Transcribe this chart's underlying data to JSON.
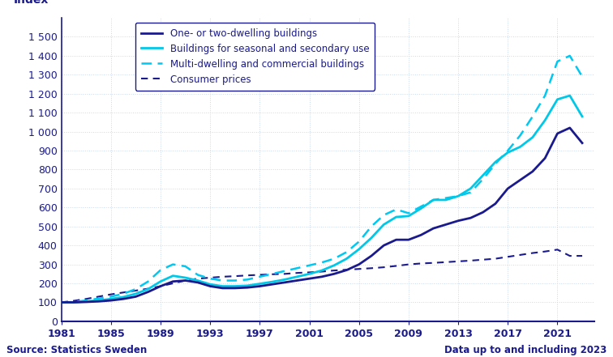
{
  "years": [
    1981,
    1982,
    1983,
    1984,
    1985,
    1986,
    1987,
    1988,
    1989,
    1990,
    1991,
    1992,
    1993,
    1994,
    1995,
    1996,
    1997,
    1998,
    1999,
    2000,
    2001,
    2002,
    2003,
    2004,
    2005,
    2006,
    2007,
    2008,
    2009,
    2010,
    2011,
    2012,
    2013,
    2014,
    2015,
    2016,
    2017,
    2018,
    2019,
    2020,
    2021,
    2022,
    2023
  ],
  "one_two_dwelling": [
    100,
    100,
    102,
    105,
    110,
    118,
    130,
    155,
    185,
    210,
    215,
    205,
    185,
    175,
    175,
    178,
    185,
    195,
    205,
    215,
    225,
    235,
    250,
    270,
    300,
    345,
    400,
    430,
    430,
    455,
    490,
    510,
    530,
    545,
    575,
    620,
    700,
    745,
    790,
    860,
    990,
    1020,
    940
  ],
  "seasonal_secondary": [
    100,
    100,
    105,
    110,
    118,
    128,
    145,
    170,
    210,
    240,
    230,
    215,
    195,
    185,
    185,
    188,
    198,
    208,
    220,
    235,
    250,
    268,
    295,
    330,
    380,
    440,
    510,
    550,
    555,
    595,
    640,
    640,
    660,
    700,
    770,
    840,
    890,
    920,
    970,
    1060,
    1170,
    1190,
    1080
  ],
  "multi_commercial": [
    100,
    102,
    110,
    120,
    130,
    145,
    170,
    210,
    270,
    300,
    290,
    245,
    225,
    215,
    215,
    220,
    235,
    250,
    265,
    280,
    295,
    310,
    330,
    365,
    420,
    500,
    560,
    590,
    570,
    605,
    640,
    650,
    660,
    680,
    750,
    830,
    900,
    980,
    1080,
    1190,
    1370,
    1400,
    1290
  ],
  "consumer_prices": [
    100,
    108,
    118,
    130,
    142,
    152,
    162,
    172,
    185,
    200,
    215,
    225,
    230,
    235,
    238,
    242,
    245,
    248,
    250,
    255,
    258,
    262,
    268,
    272,
    276,
    280,
    285,
    292,
    300,
    305,
    308,
    312,
    316,
    320,
    325,
    330,
    340,
    350,
    360,
    368,
    378,
    345,
    345
  ],
  "ylabel": "Index",
  "ylim": [
    0,
    1600
  ],
  "yticks": [
    0,
    100,
    200,
    300,
    400,
    500,
    600,
    700,
    800,
    900,
    1000,
    1100,
    1200,
    1300,
    1400,
    1500
  ],
  "xtick_years": [
    1981,
    1985,
    1989,
    1993,
    1997,
    2001,
    2005,
    2009,
    2013,
    2017,
    2021
  ],
  "color_dark_navy": "#1a1a8c",
  "color_cyan": "#00c8e6",
  "color_cyan_dashed": "#00c8f0",
  "color_navy_dashed": "#1a1a8c",
  "legend_labels": [
    "One- or two-dwelling buildings",
    "Buildings for seasonal and secondary use",
    "Multi-dwelling and commercial buildings",
    "Consumer prices"
  ],
  "source_text": "Source: Statistics Sweden",
  "data_note": "Data up to and including 2023",
  "bg_color": "#ffffff",
  "plot_bg": "#ffffff",
  "grid_color": "#c8d8f0",
  "spine_color": "#1a1a8c",
  "text_color": "#1a1a8c"
}
